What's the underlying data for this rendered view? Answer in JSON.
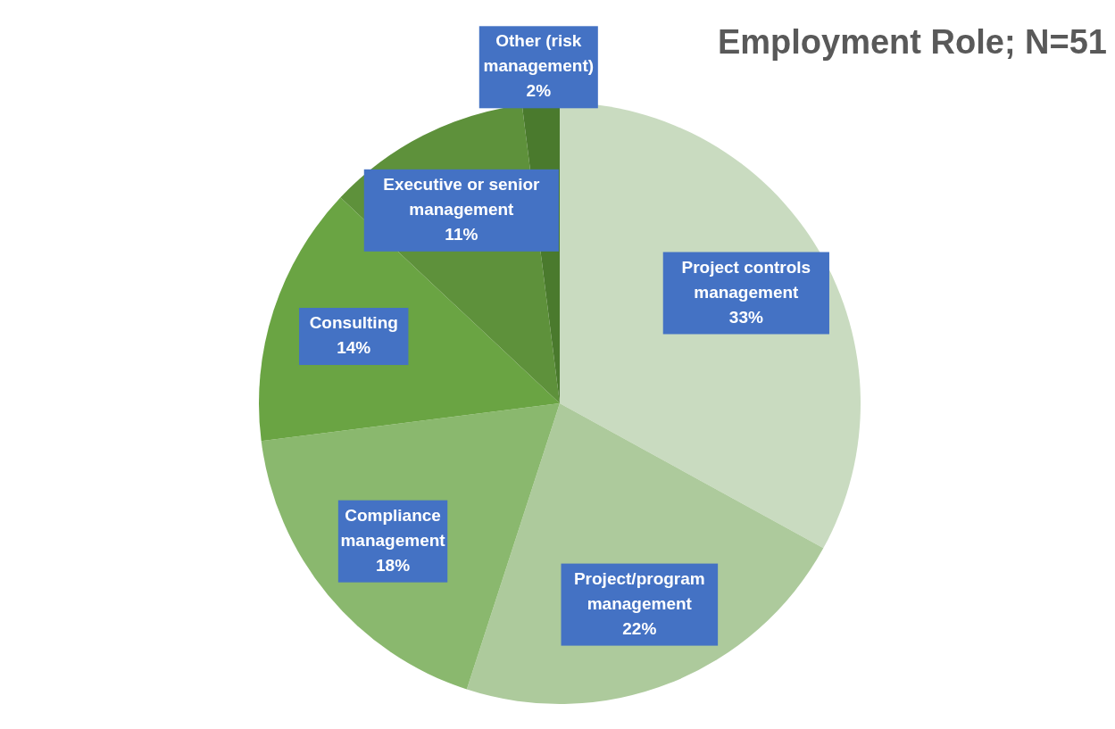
{
  "chart_data": {
    "type": "pie",
    "title": "Employment Role; N=51",
    "categories": [
      "Project controls management",
      "Project/program management",
      "Compliance management",
      "Consulting",
      "Executive or senior management",
      "Other (risk management)"
    ],
    "values": [
      33,
      22,
      18,
      14,
      11,
      2
    ],
    "value_labels": [
      "33%",
      "22%",
      "18%",
      "14%",
      "11%",
      "2%"
    ],
    "colors": [
      "#c9dbc0",
      "#adca9c",
      "#8ab86e",
      "#6aa443",
      "#5e913b",
      "#4a7a2d"
    ],
    "legend": false
  }
}
